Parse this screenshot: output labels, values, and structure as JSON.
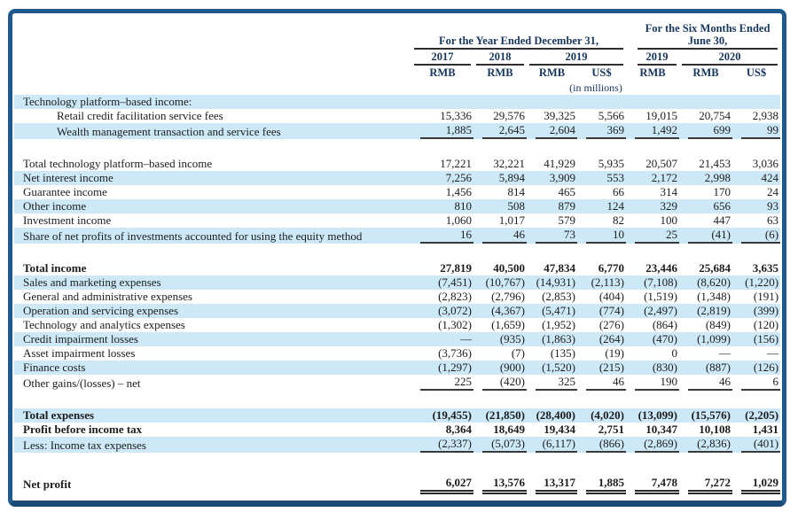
{
  "table": {
    "header": {
      "group1": "For the Year Ended December 31,",
      "group2": "For the Six Months Ended June 30,",
      "years": [
        "2017",
        "2018",
        "2019",
        "2019",
        "2020"
      ],
      "currencies": [
        "RMB",
        "RMB",
        "RMB",
        "US$",
        "RMB",
        "RMB",
        "US$"
      ],
      "units_note": "(in millions)"
    },
    "rows": [
      {
        "label": "Technology platform–based income:",
        "shaded": true,
        "values": [
          "",
          "",
          "",
          "",
          "",
          "",
          ""
        ]
      },
      {
        "label": "Retail credit facilitation service fees",
        "indent": true,
        "values": [
          "15,336",
          "29,576",
          "39,325",
          "5,566",
          "19,015",
          "20,754",
          "2,938"
        ]
      },
      {
        "label": "Wealth management transaction and service fees",
        "indent": true,
        "shaded": true,
        "underline": "single",
        "values": [
          "1,885",
          "2,645",
          "2,604",
          "369",
          "1,492",
          "699",
          "99"
        ]
      },
      {
        "type": "spacer"
      },
      {
        "label": "Total technology platform–based income",
        "values": [
          "17,221",
          "32,221",
          "41,929",
          "5,935",
          "20,507",
          "21,453",
          "3,036"
        ]
      },
      {
        "label": "Net interest income",
        "shaded": true,
        "values": [
          "7,256",
          "5,894",
          "3,909",
          "553",
          "2,172",
          "2,998",
          "424"
        ]
      },
      {
        "label": "Guarantee income",
        "values": [
          "1,456",
          "814",
          "465",
          "66",
          "314",
          "170",
          "24"
        ]
      },
      {
        "label": "Other income",
        "shaded": true,
        "values": [
          "810",
          "508",
          "879",
          "124",
          "329",
          "656",
          "93"
        ]
      },
      {
        "label": "Investment income",
        "values": [
          "1,060",
          "1,017",
          "579",
          "82",
          "100",
          "447",
          "63"
        ]
      },
      {
        "label": "Share of net profits of investments accounted for using the equity method",
        "shaded": true,
        "underline": "single",
        "values": [
          "16",
          "46",
          "73",
          "10",
          "25",
          "(41)",
          "(6)"
        ]
      },
      {
        "type": "spacer"
      },
      {
        "label": "Total income",
        "bold": true,
        "values": [
          "27,819",
          "40,500",
          "47,834",
          "6,770",
          "23,446",
          "25,684",
          "3,635"
        ]
      },
      {
        "label": "Sales and marketing expenses",
        "shaded": true,
        "values": [
          "(7,451)",
          "(10,767)",
          "(14,931)",
          "(2,113)",
          "(7,108)",
          "(8,620)",
          "(1,220)"
        ]
      },
      {
        "label": "General and administrative expenses",
        "values": [
          "(2,823)",
          "(2,796)",
          "(2,853)",
          "(404)",
          "(1,519)",
          "(1,348)",
          "(191)"
        ]
      },
      {
        "label": "Operation and servicing expenses",
        "shaded": true,
        "values": [
          "(3,072)",
          "(4,367)",
          "(5,471)",
          "(774)",
          "(2,497)",
          "(2,819)",
          "(399)"
        ]
      },
      {
        "label": "Technology and analytics expenses",
        "values": [
          "(1,302)",
          "(1,659)",
          "(1,952)",
          "(276)",
          "(864)",
          "(849)",
          "(120)"
        ]
      },
      {
        "label": "Credit impairment losses",
        "shaded": true,
        "values": [
          "—",
          "(935)",
          "(1,863)",
          "(264)",
          "(470)",
          "(1,099)",
          "(156)"
        ]
      },
      {
        "label": "Asset impairment losses",
        "values": [
          "(3,736)",
          "(7)",
          "(135)",
          "(19)",
          "0",
          "—",
          "—"
        ]
      },
      {
        "label": "Finance costs",
        "shaded": true,
        "values": [
          "(1,297)",
          "(900)",
          "(1,520)",
          "(215)",
          "(830)",
          "(887)",
          "(126)"
        ]
      },
      {
        "label": "Other gains/(losses) – net",
        "underline": "single",
        "values": [
          "225",
          "(420)",
          "325",
          "46",
          "190",
          "46",
          "6"
        ]
      },
      {
        "type": "spacer"
      },
      {
        "label": "Total expenses",
        "bold": true,
        "shaded": true,
        "values": [
          "(19,455)",
          "(21,850)",
          "(28,400)",
          "(4,020)",
          "(13,099)",
          "(15,576)",
          "(2,205)"
        ]
      },
      {
        "label": "Profit before income tax",
        "bold": true,
        "values": [
          "8,364",
          "18,649",
          "19,434",
          "2,751",
          "10,347",
          "10,108",
          "1,431"
        ]
      },
      {
        "label": "Less: Income tax expenses",
        "shaded": true,
        "underline": "single",
        "values": [
          "(2,337)",
          "(5,073)",
          "(6,117)",
          "(866)",
          "(2,869)",
          "(2,836)",
          "(401)"
        ]
      },
      {
        "type": "spacer",
        "tall": true
      },
      {
        "label": "Net profit",
        "bold": true,
        "underline": "double",
        "values": [
          "6,027",
          "13,576",
          "13,317",
          "1,885",
          "7,478",
          "7,272",
          "1,029"
        ]
      }
    ]
  }
}
